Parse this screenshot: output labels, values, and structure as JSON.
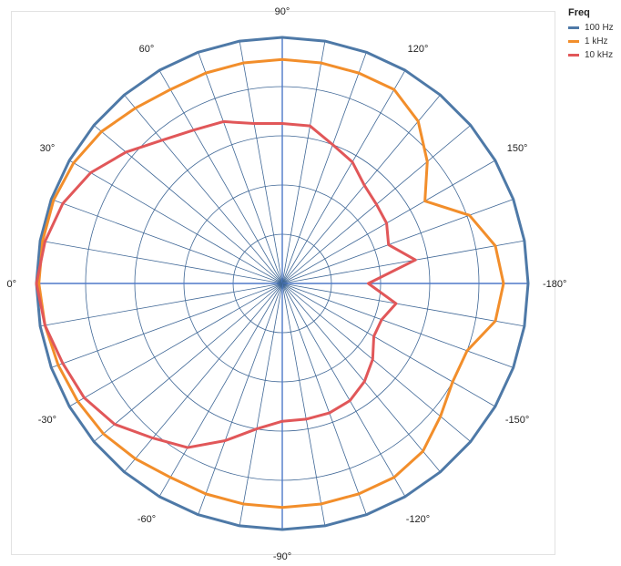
{
  "chart_data": {
    "type": "polar-line",
    "legend_title": "Freq",
    "legend_placement": "top-right",
    "angle_ticks": [
      "90°",
      "120°",
      "150°",
      "-180°",
      "-150°",
      "-120°",
      "-90°",
      "-60°",
      "-30°",
      "0°",
      "30°",
      "60°"
    ],
    "angle_unit": "degrees",
    "angle_step_spokes": 10,
    "radius_range": [
      0,
      1
    ],
    "radial_gridlines": [
      0.2,
      0.4,
      0.6,
      0.8
    ],
    "grid": true,
    "series": [
      {
        "name": "100 Hz",
        "color": "#4e79a7",
        "angles": [
          -180,
          -170,
          -160,
          -150,
          -140,
          -130,
          -120,
          -110,
          -100,
          -90,
          -80,
          -70,
          -60,
          -50,
          -40,
          -30,
          -20,
          -10,
          0,
          10,
          20,
          30,
          40,
          50,
          60,
          70,
          80,
          90,
          100,
          110,
          120,
          130,
          140,
          150,
          160,
          170
        ],
        "values": [
          1,
          1,
          1,
          1,
          1,
          1,
          1,
          1,
          1,
          1,
          1,
          1,
          1,
          1,
          1,
          1,
          1,
          1,
          1,
          1,
          1,
          1,
          1,
          1,
          1,
          1,
          1,
          1,
          1,
          1,
          1,
          1,
          1,
          1,
          1,
          1
        ]
      },
      {
        "name": "1 kHz",
        "color": "#f28e2b",
        "angles": [
          -180,
          -170,
          -160,
          -150,
          -140,
          -130,
          -120,
          -110,
          -100,
          -90,
          -80,
          -70,
          -60,
          -50,
          -40,
          -30,
          -20,
          -10,
          0,
          10,
          20,
          30,
          40,
          50,
          60,
          70,
          80,
          90,
          100,
          110,
          120,
          130,
          140,
          150,
          160,
          170
        ],
        "values": [
          0.9,
          0.88,
          0.8,
          0.8,
          0.84,
          0.89,
          0.91,
          0.91,
          0.91,
          0.91,
          0.91,
          0.91,
          0.91,
          0.93,
          0.95,
          0.96,
          0.97,
          0.98,
          0.99,
          0.99,
          0.99,
          0.98,
          0.96,
          0.93,
          0.91,
          0.91,
          0.91,
          0.91,
          0.91,
          0.91,
          0.91,
          0.86,
          0.77,
          0.67,
          0.81,
          0.88
        ]
      },
      {
        "name": "10 kHz",
        "color": "#e15759",
        "angles": [
          -180,
          -170,
          -160,
          -150,
          -140,
          -130,
          -120,
          -110,
          -100,
          -90,
          -80,
          -70,
          -60,
          -50,
          -40,
          -30,
          -20,
          -10,
          0,
          10,
          20,
          30,
          40,
          50,
          60,
          70,
          80,
          90,
          100,
          110,
          120,
          130,
          140,
          150,
          160,
          170
        ],
        "values": [
          0.35,
          0.47,
          0.43,
          0.43,
          0.48,
          0.52,
          0.55,
          0.56,
          0.56,
          0.56,
          0.6,
          0.68,
          0.77,
          0.82,
          0.89,
          0.93,
          0.95,
          0.98,
          1.0,
          0.98,
          0.95,
          0.9,
          0.83,
          0.76,
          0.72,
          0.7,
          0.66,
          0.65,
          0.65,
          0.6,
          0.57,
          0.52,
          0.5,
          0.49,
          0.46,
          0.55
        ]
      }
    ]
  }
}
